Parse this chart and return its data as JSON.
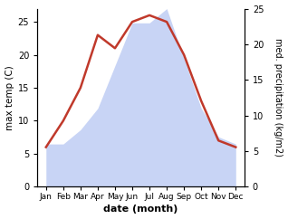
{
  "months": [
    "Jan",
    "Feb",
    "Mar",
    "Apr",
    "May",
    "Jun",
    "Jul",
    "Aug",
    "Sep",
    "Oct",
    "Nov",
    "Dec"
  ],
  "x": [
    1,
    2,
    3,
    4,
    5,
    6,
    7,
    8,
    9,
    10,
    11,
    12
  ],
  "temperature": [
    6,
    10,
    15,
    23,
    21,
    25,
    26,
    25,
    20,
    13,
    7,
    6
  ],
  "precipitation": [
    6,
    6,
    8,
    11,
    17,
    23,
    23,
    25,
    18,
    11,
    7,
    6
  ],
  "temp_color": "#c0392b",
  "precip_color_fill": "#c8d4f5",
  "ylabel_left": "max temp (C)",
  "ylabel_right": "med. precipitation (kg/m2)",
  "xlabel": "date (month)",
  "ylim_left": [
    0,
    27
  ],
  "ylim_right": [
    0,
    25
  ],
  "yticks_left": [
    0,
    5,
    10,
    15,
    20,
    25
  ],
  "yticks_right": [
    0,
    5,
    10,
    15,
    20,
    25
  ],
  "background_color": "#ffffff"
}
